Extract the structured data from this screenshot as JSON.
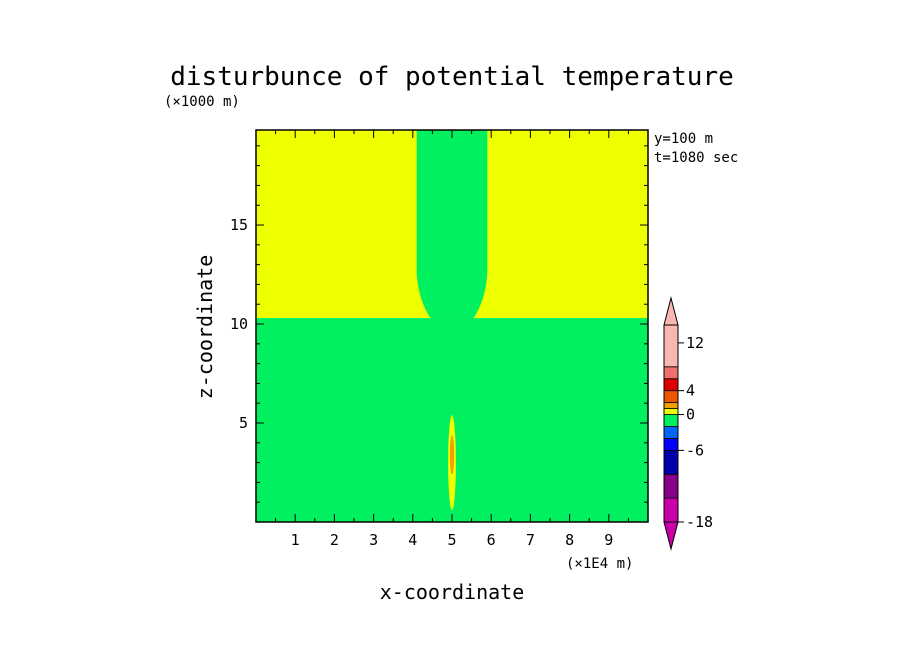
{
  "chart_data": {
    "type": "heatmap",
    "title": "disturbunce of potential temperature",
    "xlabel": "x-coordinate",
    "ylabel": "z-coordinate",
    "x_unit": "(×1E4 m)",
    "y_unit": "(×1000 m)",
    "xlim": [
      0,
      10
    ],
    "ylim": [
      0,
      19.8
    ],
    "x_ticks": [
      1,
      2,
      3,
      4,
      5,
      6,
      7,
      8,
      9
    ],
    "y_ticks": [
      5,
      10,
      15
    ],
    "annotations": [
      "y=100 m",
      "t=1080 sec"
    ],
    "regions": [
      {
        "name": "upper-background",
        "color": "#eeff00",
        "x": [
          0,
          10
        ],
        "z": [
          10.3,
          19.8
        ]
      },
      {
        "name": "lower-background",
        "color": "#00f060",
        "x": [
          0,
          10
        ],
        "z": [
          0,
          10.3
        ]
      },
      {
        "name": "central-column",
        "color": "#00f060",
        "outline": [
          [
            4.1,
            19.8
          ],
          [
            4.1,
            12.5
          ],
          [
            4.45,
            10.3
          ],
          [
            5.55,
            10.3
          ],
          [
            5.9,
            12.5
          ],
          [
            5.9,
            19.8
          ]
        ]
      },
      {
        "name": "core-yellow",
        "color": "#eeff00",
        "center": [
          5.0,
          3.0
        ],
        "radius": [
          0.1,
          2.4
        ]
      },
      {
        "name": "core-orange",
        "color": "#f0a000",
        "center": [
          5.0,
          3.4
        ],
        "radius": [
          0.055,
          1.0
        ]
      }
    ],
    "colorbar": {
      "tick_labels": [
        "12",
        "4",
        "0",
        "-6",
        "-18"
      ],
      "tick_values": [
        12,
        4,
        0,
        -6,
        -18
      ],
      "colors": [
        "#cc00aa",
        "#880088",
        "#0000aa",
        "#0000ff",
        "#0066ff",
        "#00f060",
        "#eeff00",
        "#f0a000",
        "#ee5500",
        "#dd0000",
        "#f07070",
        "#f8b8b0"
      ],
      "levels": [
        -18,
        -14,
        -10,
        -6,
        -4,
        -2,
        0,
        1,
        2,
        4,
        6,
        8,
        15
      ]
    }
  }
}
